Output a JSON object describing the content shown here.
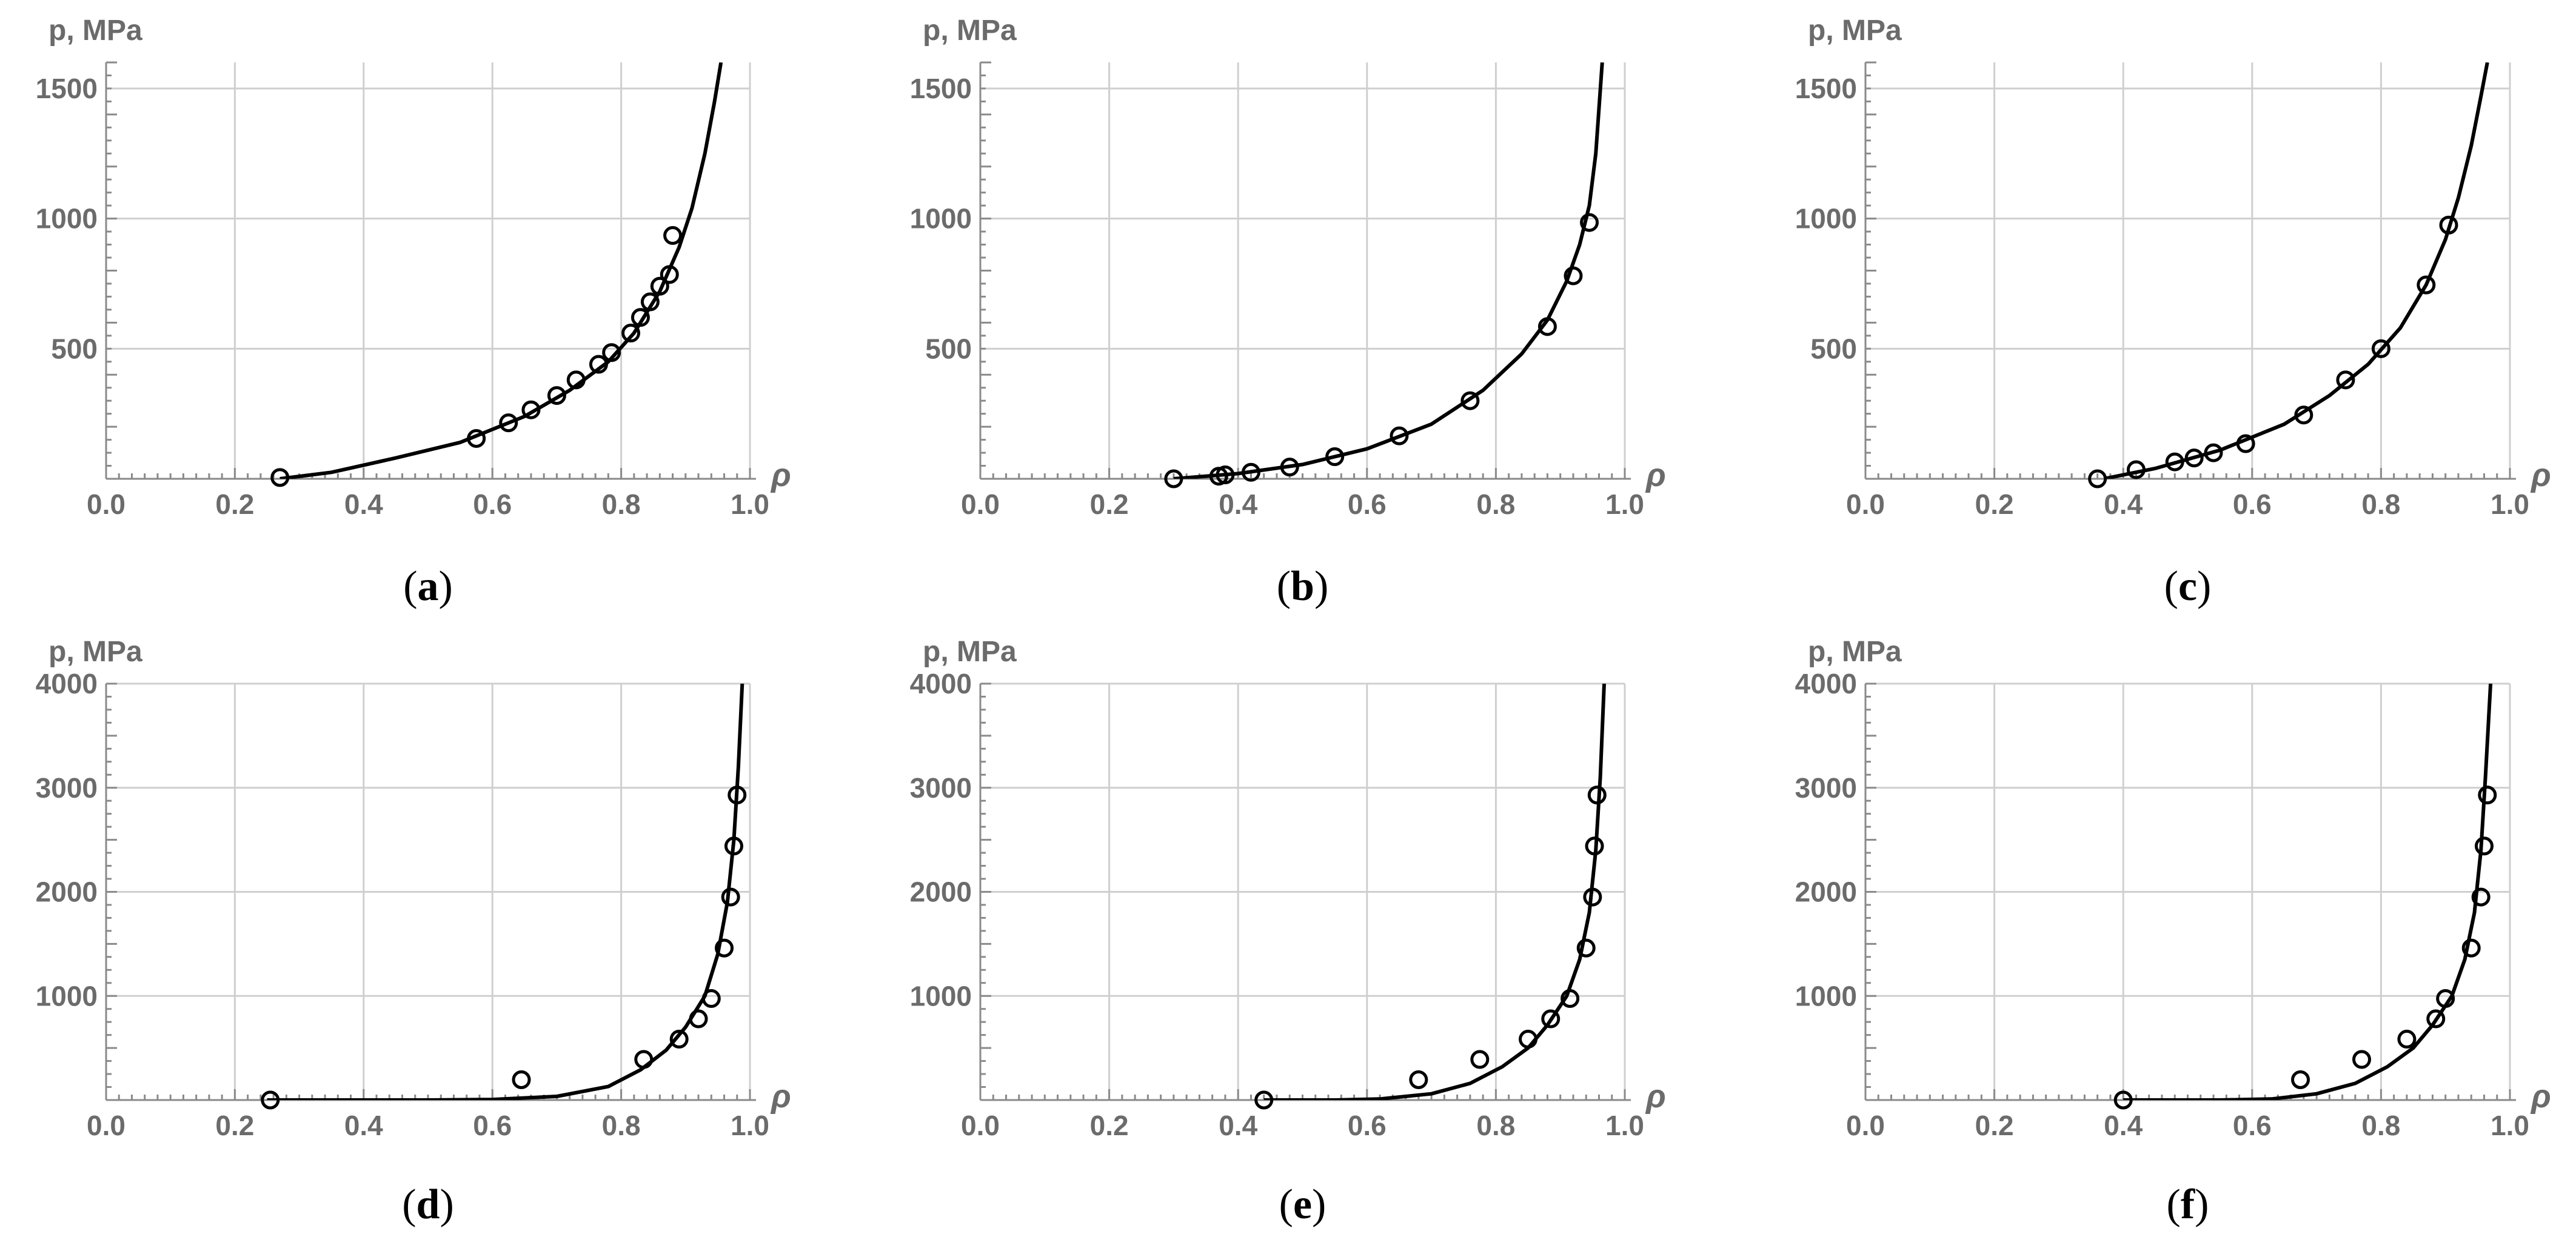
{
  "chart_data": [
    {
      "type": "scatter",
      "panel_label": "a",
      "xlabel": "ρ",
      "ylabel": "p, MPa",
      "xlim": [
        0.0,
        1.0
      ],
      "ylim": [
        0,
        1600
      ],
      "x_ticks": [
        "0.0",
        "0.2",
        "0.4",
        "0.6",
        "0.8",
        "1.0"
      ],
      "y_ticks": [
        "500",
        "1000",
        "1500"
      ],
      "grid": true,
      "series": [
        {
          "kind": "points",
          "marker": "open-circle",
          "x": [
            0.27,
            0.575,
            0.625,
            0.66,
            0.7,
            0.73,
            0.765,
            0.785,
            0.815,
            0.83,
            0.845,
            0.86,
            0.875,
            0.88
          ],
          "y": [
            5,
            155,
            215,
            265,
            320,
            380,
            440,
            485,
            560,
            620,
            680,
            740,
            785,
            935
          ]
        },
        {
          "kind": "curve",
          "x": [
            0.27,
            0.35,
            0.45,
            0.55,
            0.65,
            0.72,
            0.78,
            0.82,
            0.86,
            0.89,
            0.91,
            0.93,
            0.945,
            0.955
          ],
          "y": [
            0,
            25,
            80,
            140,
            240,
            340,
            450,
            560,
            720,
            890,
            1040,
            1250,
            1450,
            1600
          ]
        }
      ]
    },
    {
      "type": "scatter",
      "panel_label": "b",
      "xlabel": "ρ",
      "ylabel": "p, MPa",
      "xlim": [
        0.0,
        1.0
      ],
      "ylim": [
        0,
        1600
      ],
      "x_ticks": [
        "0.0",
        "0.2",
        "0.4",
        "0.6",
        "0.8",
        "1.0"
      ],
      "y_ticks": [
        "500",
        "1000",
        "1500"
      ],
      "grid": true,
      "series": [
        {
          "kind": "points",
          "marker": "open-circle",
          "x": [
            0.3,
            0.37,
            0.38,
            0.42,
            0.48,
            0.55,
            0.65,
            0.76,
            0.88,
            0.92,
            0.945
          ],
          "y": [
            0,
            10,
            15,
            25,
            45,
            85,
            165,
            300,
            585,
            780,
            985
          ]
        },
        {
          "kind": "curve",
          "x": [
            0.3,
            0.4,
            0.5,
            0.6,
            0.7,
            0.78,
            0.84,
            0.88,
            0.91,
            0.93,
            0.945,
            0.955,
            0.965
          ],
          "y": [
            0,
            20,
            55,
            115,
            210,
            340,
            480,
            610,
            760,
            900,
            1050,
            1250,
            1600
          ]
        }
      ]
    },
    {
      "type": "scatter",
      "panel_label": "c",
      "xlabel": "ρ",
      "ylabel": "p, MPa",
      "xlim": [
        0.0,
        1.0
      ],
      "ylim": [
        0,
        1600
      ],
      "x_ticks": [
        "0.0",
        "0.2",
        "0.4",
        "0.6",
        "0.8",
        "1.0"
      ],
      "y_ticks": [
        "500",
        "1000",
        "1500"
      ],
      "grid": true,
      "series": [
        {
          "kind": "points",
          "marker": "open-circle",
          "x": [
            0.36,
            0.42,
            0.48,
            0.51,
            0.54,
            0.59,
            0.68,
            0.745,
            0.8,
            0.87,
            0.905
          ],
          "y": [
            0,
            35,
            65,
            80,
            100,
            135,
            245,
            380,
            500,
            745,
            975
          ]
        },
        {
          "kind": "curve",
          "x": [
            0.37,
            0.45,
            0.55,
            0.65,
            0.72,
            0.78,
            0.83,
            0.87,
            0.9,
            0.92,
            0.94,
            0.955,
            0.965
          ],
          "y": [
            0,
            40,
            110,
            210,
            320,
            440,
            580,
            745,
            920,
            1080,
            1280,
            1470,
            1600
          ]
        }
      ]
    },
    {
      "type": "scatter",
      "panel_label": "d",
      "xlabel": "ρ",
      "ylabel": "p, MPa",
      "xlim": [
        0.0,
        1.0
      ],
      "ylim": [
        0,
        4000
      ],
      "x_ticks": [
        "0.0",
        "0.2",
        "0.4",
        "0.6",
        "0.8",
        "1.0"
      ],
      "y_ticks": [
        "1000",
        "2000",
        "3000",
        "4000"
      ],
      "grid": true,
      "series": [
        {
          "kind": "points",
          "marker": "open-circle",
          "x": [
            0.255,
            0.645,
            0.835,
            0.89,
            0.92,
            0.94,
            0.96,
            0.97,
            0.975,
            0.98
          ],
          "y": [
            0,
            195,
            390,
            585,
            780,
            975,
            1460,
            1950,
            2440,
            2930
          ]
        },
        {
          "kind": "curve",
          "x": [
            0.25,
            0.5,
            0.6,
            0.7,
            0.78,
            0.83,
            0.87,
            0.9,
            0.93,
            0.95,
            0.965,
            0.975,
            0.982,
            0.988
          ],
          "y": [
            0,
            0,
            5,
            35,
            130,
            290,
            480,
            700,
            1000,
            1400,
            1900,
            2500,
            3200,
            4000
          ]
        }
      ]
    },
    {
      "type": "scatter",
      "panel_label": "e",
      "xlabel": "ρ",
      "ylabel": "p, MPa",
      "xlim": [
        0.0,
        1.0
      ],
      "ylim": [
        0,
        4000
      ],
      "x_ticks": [
        "0.0",
        "0.2",
        "0.4",
        "0.6",
        "0.8",
        "1.0"
      ],
      "y_ticks": [
        "1000",
        "2000",
        "3000",
        "4000"
      ],
      "grid": true,
      "series": [
        {
          "kind": "points",
          "marker": "open-circle",
          "x": [
            0.44,
            0.68,
            0.775,
            0.85,
            0.885,
            0.915,
            0.94,
            0.95,
            0.953,
            0.957
          ],
          "y": [
            0,
            195,
            390,
            585,
            780,
            975,
            1460,
            1950,
            2440,
            2930
          ]
        },
        {
          "kind": "curve",
          "x": [
            0.44,
            0.55,
            0.62,
            0.7,
            0.76,
            0.81,
            0.85,
            0.88,
            0.91,
            0.93,
            0.945,
            0.955,
            0.962,
            0.968
          ],
          "y": [
            0,
            0,
            10,
            60,
            160,
            320,
            500,
            720,
            1000,
            1350,
            1800,
            2400,
            3100,
            4000
          ]
        }
      ]
    },
    {
      "type": "scatter",
      "panel_label": "f",
      "xlabel": "ρ",
      "ylabel": "p, MPa",
      "xlim": [
        0.0,
        1.0
      ],
      "ylim": [
        0,
        4000
      ],
      "x_ticks": [
        "0.0",
        "0.2",
        "0.4",
        "0.6",
        "0.8",
        "1.0"
      ],
      "y_ticks": [
        "1000",
        "2000",
        "3000",
        "4000"
      ],
      "grid": true,
      "series": [
        {
          "kind": "points",
          "marker": "open-circle",
          "x": [
            0.4,
            0.675,
            0.77,
            0.84,
            0.885,
            0.9,
            0.94,
            0.955,
            0.96,
            0.965
          ],
          "y": [
            0,
            195,
            390,
            585,
            780,
            975,
            1460,
            1950,
            2440,
            2930
          ]
        },
        {
          "kind": "curve",
          "x": [
            0.4,
            0.55,
            0.63,
            0.7,
            0.76,
            0.81,
            0.85,
            0.88,
            0.91,
            0.93,
            0.945,
            0.955,
            0.962,
            0.97
          ],
          "y": [
            0,
            0,
            10,
            60,
            160,
            320,
            500,
            720,
            1000,
            1350,
            1800,
            2400,
            3100,
            4000
          ]
        }
      ]
    }
  ]
}
